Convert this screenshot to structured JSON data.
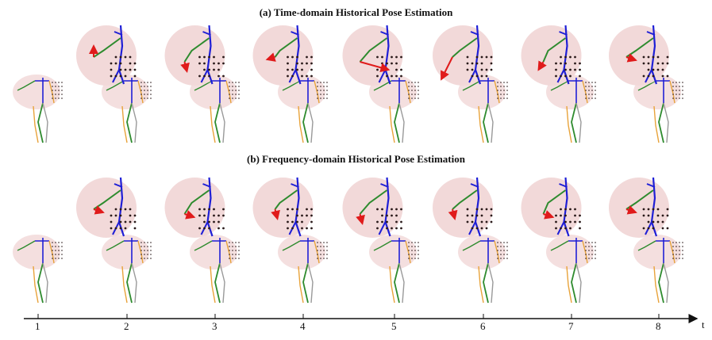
{
  "figure": {
    "title_a": "(a) Time-domain Historical Pose Estimation",
    "title_b": "(b) Frequency-domain Historical Pose Estimation"
  },
  "timeline": {
    "axis_label": "t",
    "ticks": [
      "1",
      "2",
      "3",
      "4",
      "5",
      "6",
      "7",
      "8"
    ]
  },
  "colors": {
    "zoom_circle": "#f2d9d9",
    "spine": "#1f1fd6",
    "arm": "#2e8b2e",
    "leg_orange": "#e8a33a",
    "leg_gray": "#999999",
    "arrow": "#e01b1b",
    "points": "#2a1a1a"
  },
  "rows": [
    {
      "id": "time-domain",
      "arrows": [
        "short-vertical",
        "short-down",
        "short-left",
        "long-right",
        "long-down-left",
        "short-down-left",
        "short-right"
      ]
    },
    {
      "id": "frequency-domain",
      "arrows": [
        "short-right",
        "short-right",
        "short-down",
        "short-down",
        "short-down",
        "short-right",
        "short-right"
      ]
    }
  ]
}
